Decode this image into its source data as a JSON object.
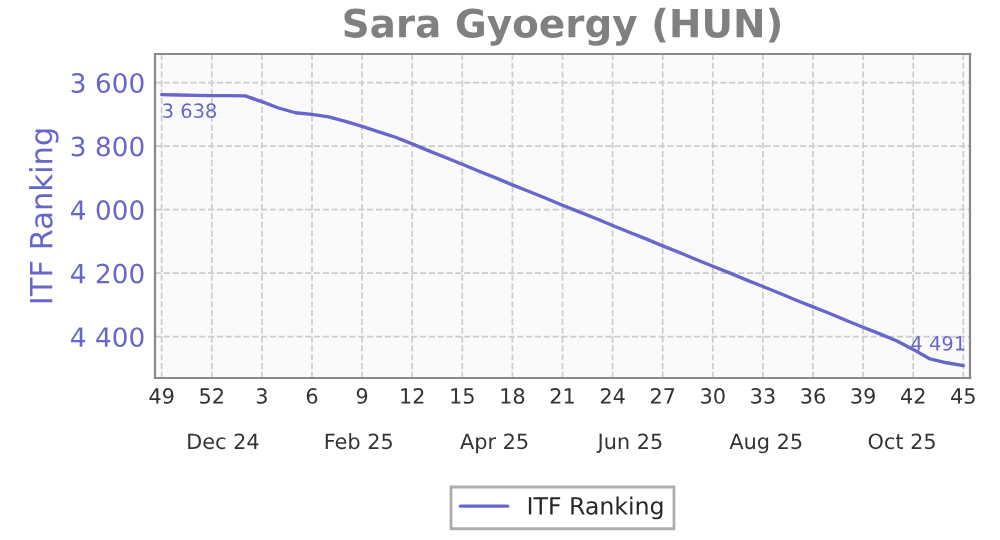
{
  "chart_data": {
    "type": "line",
    "title": "Sara Gyoergy (HUN)",
    "ylabel": "ITF Ranking",
    "categories": [
      "49",
      null,
      null,
      "52",
      null,
      null,
      "3",
      null,
      null,
      "6",
      null,
      null,
      "9",
      null,
      null,
      "12",
      null,
      null,
      "15",
      null,
      null,
      "18",
      null,
      null,
      "21",
      null,
      null,
      "24",
      null,
      null,
      "27",
      null,
      null,
      "30",
      null,
      null,
      "33",
      null,
      null,
      "36",
      null,
      null,
      "39",
      null,
      null,
      "42",
      null,
      null,
      "45"
    ],
    "series": [
      {
        "name": "ITF Ranking",
        "color": "#6666cc",
        "values": [
          3638,
          3639,
          3640,
          3641,
          3641,
          3642,
          3660,
          3680,
          3695,
          3700,
          3708,
          3722,
          3738,
          3755,
          3772,
          3793,
          3815,
          3836,
          3857,
          3879,
          3900,
          3922,
          3943,
          3964,
          3986,
          4007,
          4028,
          4050,
          4071,
          4092,
          4114,
          4135,
          4157,
          4178,
          4199,
          4221,
          4242,
          4263,
          4285,
          4306,
          4327,
          4349,
          4370,
          4391,
          4413,
          4440,
          4470,
          4482,
          4491
        ],
        "value_labels": [
          "3 638",
          null,
          null,
          null,
          null,
          null,
          null,
          null,
          null,
          null,
          null,
          null,
          null,
          null,
          null,
          null,
          null,
          null,
          null,
          null,
          null,
          null,
          null,
          null,
          null,
          null,
          null,
          null,
          null,
          null,
          null,
          null,
          null,
          null,
          null,
          null,
          null,
          null,
          null,
          null,
          null,
          null,
          null,
          null,
          null,
          null,
          null,
          null,
          "4 491"
        ]
      }
    ],
    "ylim": [
      4530,
      3510
    ],
    "yticks": [
      {
        "value": 3600,
        "label": "3 600"
      },
      {
        "value": 3800,
        "label": "3 800"
      },
      {
        "value": 4000,
        "label": "4 000"
      },
      {
        "value": 4200,
        "label": "4 200"
      },
      {
        "value": 4400,
        "label": "4 400"
      }
    ],
    "annotations": [
      "Dec 24",
      "Feb 25",
      "Apr 25",
      "Jun 25",
      "Aug 25",
      "Oct 25"
    ],
    "grid": true,
    "legend": "bottom",
    "marker": "none",
    "line_style": "solid"
  }
}
